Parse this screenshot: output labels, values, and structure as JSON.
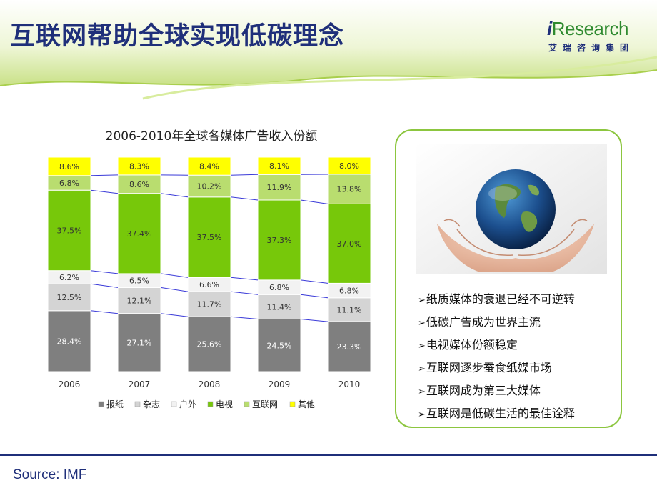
{
  "page": {
    "title": "互联网帮助全球实现低碳理念",
    "source": "Source: IMF"
  },
  "logo": {
    "brand_i": "i",
    "brand_rest": "Research",
    "subtitle": "艾瑞咨询集团"
  },
  "panel": {
    "bullets": [
      "纸质媒体的衰退已经不可逆转",
      "低碳广告成为世界主流",
      "电视媒体份额稳定",
      "互联网逐步蚕食纸媒市场",
      "互联网成为第三大媒体",
      "互联网是低碳生活的最佳诠释"
    ]
  },
  "colors": {
    "title": "#1f2f7a",
    "header_green": "#c6df7c",
    "panel_border": "#8cc63f"
  },
  "chart_data": {
    "type": "bar",
    "stacked": true,
    "title": "2006-2010年全球各媒体广告收入份额",
    "categories": [
      "2006",
      "2007",
      "2008",
      "2009",
      "2010"
    ],
    "ylim": [
      0,
      100
    ],
    "legend_position": "bottom",
    "series": [
      {
        "name": "报纸",
        "color": "#7f7f7f",
        "values": [
          28.4,
          27.1,
          25.6,
          24.5,
          23.3
        ]
      },
      {
        "name": "杂志",
        "color": "#d4d4d4",
        "values": [
          12.5,
          12.1,
          11.7,
          11.4,
          11.1
        ]
      },
      {
        "name": "户外",
        "color": "#f2f2f2",
        "values": [
          6.2,
          6.5,
          6.6,
          6.8,
          6.8
        ]
      },
      {
        "name": "电视",
        "color": "#77c80a",
        "values": [
          37.5,
          37.4,
          37.5,
          37.3,
          37.0
        ]
      },
      {
        "name": "互联网",
        "color": "#b9dd6f",
        "values": [
          6.8,
          8.6,
          10.2,
          11.9,
          13.8
        ]
      },
      {
        "name": "其他",
        "color": "#ffff00",
        "values": [
          8.6,
          8.3,
          8.4,
          8.1,
          8.0
        ]
      }
    ],
    "connector_lines": true,
    "connector_color": "#3a3ad8"
  }
}
